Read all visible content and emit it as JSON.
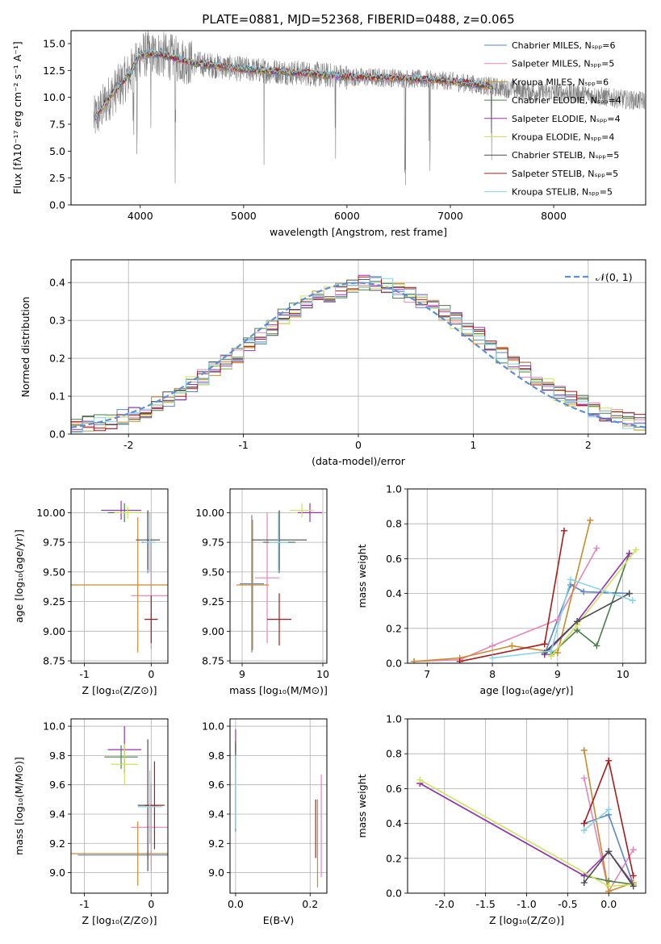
{
  "figure_title": "PLATE=0881, MJD=52368, FIBERID=0488, z=0.065",
  "colors": {
    "spectrum": "#808080",
    "series": [
      "#5b86c4",
      "#e586bd",
      "#c98a2a",
      "#4a7f4a",
      "#9a2fb5",
      "#cde35c",
      "#4d4d4d",
      "#a81b1b",
      "#86d2e6"
    ],
    "normal_curve": "#5b8fd6",
    "grid": "#b0b0b0"
  },
  "chart_data": [
    {
      "type": "line",
      "title": "PLATE=0881, MJD=52368, FIBERID=0488, z=0.065",
      "xlabel": "wavelength [Angstrom, rest frame]",
      "ylabel": "Flux [fλ10⁻¹⁷ erg cm⁻² s⁻¹ A⁻¹]",
      "xlim": [
        3330,
        8890
      ],
      "ylim": [
        0,
        16.2
      ],
      "xticks": [
        4000,
        5000,
        6000,
        7000,
        8000
      ],
      "yticks": [
        0.0,
        2.5,
        5.0,
        7.5,
        10.0,
        12.5,
        15.0
      ],
      "grid": false,
      "legend_position": "top-right",
      "legend": [
        "Chabrier MILES, Nₛₚₚ=6",
        "Salpeter MILES, Nₛₚₚ=5",
        "Kroupa MILES, Nₛₚₚ=6",
        "Chabrier ELODIE, Nₛₚₚ=4",
        "Salpeter ELODIE, Nₛₚₚ=4",
        "Kroupa ELODIE, Nₛₚₚ=4",
        "Chabrier STELIB, Nₛₚₚ=5",
        "Salpeter STELIB, Nₛₚₚ=5",
        "Kroupa STELIB, Nₛₚₚ=5"
      ],
      "continuum_x": [
        3560,
        3700,
        3900,
        4000,
        4200,
        4500,
        5000,
        5500,
        6000,
        6500,
        7000,
        7400,
        7800,
        8200,
        8600,
        8800
      ],
      "continuum_y": [
        8.0,
        10.0,
        12.2,
        14.0,
        14.0,
        13.2,
        12.6,
        12.3,
        11.9,
        11.8,
        11.5,
        11.0,
        10.5,
        10.4,
        9.9,
        9.7
      ],
      "spectrum_range": [
        3550,
        8880
      ],
      "model_range": [
        3560,
        7420
      ],
      "absorption_lines": [
        3934,
        3969,
        4102,
        4340,
        5200,
        5890,
        6563,
        6800,
        7400
      ]
    },
    {
      "type": "line",
      "xlabel": "(data-model)/error",
      "ylabel": "Normed distribution",
      "xlim": [
        -2.5,
        2.5
      ],
      "ylim": [
        0,
        0.46
      ],
      "xticks": [
        -2,
        -1,
        0,
        1,
        2
      ],
      "yticks": [
        0.0,
        0.1,
        0.2,
        0.3,
        0.4
      ],
      "grid": true,
      "legend_position": "top-right",
      "legend": [
        "𝒩(0, 1)"
      ],
      "bins": [
        -2.5,
        -2.4,
        -2.3,
        -2.2,
        -2.1,
        -2.0,
        -1.9,
        -1.8,
        -1.7,
        -1.6,
        -1.5,
        -1.4,
        -1.3,
        -1.2,
        -1.1,
        -1.0,
        -0.9,
        -0.8,
        -0.7,
        -0.6,
        -0.5,
        -0.4,
        -0.3,
        -0.2,
        -0.1,
        0.0,
        0.1,
        0.2,
        0.3,
        0.4,
        0.5,
        0.6,
        0.7,
        0.8,
        0.9,
        1.0,
        1.1,
        1.2,
        1.3,
        1.4,
        1.5,
        1.6,
        1.7,
        1.8,
        1.9,
        2.0,
        2.1,
        2.2,
        2.3,
        2.4
      ],
      "histogram_base": [
        0.02,
        0.025,
        0.03,
        0.035,
        0.045,
        0.055,
        0.065,
        0.08,
        0.095,
        0.11,
        0.13,
        0.15,
        0.17,
        0.19,
        0.21,
        0.24,
        0.26,
        0.28,
        0.31,
        0.33,
        0.35,
        0.36,
        0.37,
        0.38,
        0.39,
        0.4,
        0.395,
        0.39,
        0.38,
        0.37,
        0.35,
        0.34,
        0.32,
        0.3,
        0.28,
        0.26,
        0.24,
        0.21,
        0.19,
        0.17,
        0.15,
        0.13,
        0.11,
        0.095,
        0.08,
        0.065,
        0.055,
        0.045,
        0.035,
        0.03
      ],
      "normal_mean": 0,
      "normal_sigma": 1
    },
    {
      "type": "scatter",
      "xlabel": "Z [log₁₀(Z/Z⊙)]",
      "ylabel": "age  [log₁₀(age/yr)]",
      "xlim": [
        -1.2,
        0.25
      ],
      "ylim": [
        8.73,
        10.2
      ],
      "xticks": [
        -1,
        0
      ],
      "yticks": [
        8.75,
        9.0,
        9.25,
        9.5,
        9.75,
        10.0
      ],
      "points": [
        {
          "x": -0.05,
          "y": 9.75,
          "xerr": 0.09,
          "yerr": 0.26
        },
        {
          "x": 0.0,
          "y": 9.3,
          "xerr": 0.3,
          "yerr": 0.45
        },
        {
          "x": -0.2,
          "y": 9.39,
          "xerr": 1.1,
          "yerr": 0.57
        },
        {
          "x": -0.4,
          "y": 10.0,
          "xerr": 0.25,
          "yerr": 0.08
        },
        {
          "x": -0.45,
          "y": 10.02,
          "xerr": 0.3,
          "yerr": 0.08
        },
        {
          "x": -0.35,
          "y": 10.0,
          "xerr": 0.2,
          "yerr": 0.05
        },
        {
          "x": -0.05,
          "y": 9.77,
          "xerr": 0.18,
          "yerr": 0.25
        },
        {
          "x": 0.0,
          "y": 9.1,
          "xerr": 0.1,
          "yerr": 0.2
        },
        {
          "x": -0.02,
          "y": 9.75,
          "xerr": 0.09,
          "yerr": 0.25
        }
      ]
    },
    {
      "type": "scatter",
      "xlabel": "mass [log₁₀(M/M⊙)]",
      "ylabel": "",
      "xlim": [
        8.85,
        10.05
      ],
      "ylim": [
        8.73,
        10.2
      ],
      "xticks": [
        9,
        10
      ],
      "yticks": [
        8.75,
        9.0,
        9.25,
        9.5,
        9.75,
        10.0
      ],
      "points": [
        {
          "x": 9.12,
          "y": 9.4,
          "xerr": 0.15,
          "yerr": 0.58
        },
        {
          "x": 9.31,
          "y": 9.45,
          "xerr": 0.15,
          "yerr": 0.55
        },
        {
          "x": 9.13,
          "y": 9.39,
          "xerr": 0.2,
          "yerr": 0.55
        },
        {
          "x": 9.46,
          "y": 9.75,
          "xerr": 0.2,
          "yerr": 0.26
        },
        {
          "x": 9.84,
          "y": 10.0,
          "xerr": 0.15,
          "yerr": 0.08
        },
        {
          "x": 9.74,
          "y": 10.02,
          "xerr": 0.15,
          "yerr": 0.06
        },
        {
          "x": 9.46,
          "y": 9.77,
          "xerr": 0.34,
          "yerr": 0.25
        },
        {
          "x": 9.46,
          "y": 9.1,
          "xerr": 0.15,
          "yerr": 0.22
        },
        {
          "x": 9.45,
          "y": 9.75,
          "xerr": 0.12,
          "yerr": 0.25
        }
      ]
    },
    {
      "type": "line",
      "xlabel": "age  [log₁₀(age/yr)]",
      "ylabel": "mass weight",
      "xlim": [
        6.7,
        10.35
      ],
      "ylim": [
        0,
        1.0
      ],
      "xticks": [
        7,
        8,
        9,
        10
      ],
      "yticks": [
        0.0,
        0.2,
        0.4,
        0.6,
        0.8,
        1.0
      ],
      "grid": true,
      "series": [
        {
          "x": [
            8.8,
            9.2,
            9.4,
            10.1
          ],
          "y": [
            0.05,
            0.45,
            0.41,
            0.4
          ]
        },
        {
          "x": [
            6.8,
            7.5,
            8.0,
            9.0,
            9.6
          ],
          "y": [
            0.01,
            0.02,
            0.1,
            0.25,
            0.66
          ]
        },
        {
          "x": [
            6.8,
            7.5,
            8.3,
            9.0,
            9.5
          ],
          "y": [
            0.01,
            0.03,
            0.1,
            0.06,
            0.82
          ]
        },
        {
          "x": [
            8.9,
            9.3,
            9.6,
            10.1
          ],
          "y": [
            0.05,
            0.19,
            0.1,
            0.63
          ]
        },
        {
          "x": [
            8.8,
            9.3,
            10.1
          ],
          "y": [
            0.05,
            0.24,
            0.63
          ]
        },
        {
          "x": [
            8.9,
            9.3,
            10.2
          ],
          "y": [
            0.04,
            0.22,
            0.65
          ]
        },
        {
          "x": [
            8.8,
            9.3,
            10.1
          ],
          "y": [
            0.06,
            0.24,
            0.4
          ]
        },
        {
          "x": [
            7.5,
            8.8,
            9.1
          ],
          "y": [
            0.01,
            0.11,
            0.76
          ]
        },
        {
          "x": [
            8.0,
            8.9,
            9.2,
            10.15
          ],
          "y": [
            0.03,
            0.07,
            0.48,
            0.36
          ]
        }
      ]
    },
    {
      "type": "scatter",
      "xlabel": "Z [log₁₀(Z/Z⊙)]",
      "ylabel": "mass [log₁₀(M/M⊙)]",
      "xlim": [
        -1.2,
        0.25
      ],
      "ylim": [
        8.86,
        10.05
      ],
      "xticks": [
        -1,
        0
      ],
      "yticks": [
        9.0,
        9.2,
        9.4,
        9.6,
        9.8,
        10.0
      ],
      "points": [
        {
          "x": -0.05,
          "y": 9.12,
          "xerr": 1.05,
          "yerr": 0.03
        },
        {
          "x": 0.0,
          "y": 9.31,
          "xerr": 0.3,
          "yerr": 0.3
        },
        {
          "x": -0.2,
          "y": 9.13,
          "xerr": 1.1,
          "yerr": 0.22
        },
        {
          "x": -0.45,
          "y": 9.79,
          "xerr": 0.25,
          "yerr": 0.08
        },
        {
          "x": -0.4,
          "y": 9.84,
          "xerr": 0.25,
          "yerr": 0.16
        },
        {
          "x": -0.4,
          "y": 9.74,
          "xerr": 0.2,
          "yerr": 0.14
        },
        {
          "x": -0.05,
          "y": 9.46,
          "xerr": 0.15,
          "yerr": 0.45
        },
        {
          "x": 0.05,
          "y": 9.46,
          "xerr": 0.15,
          "yerr": 0.3
        },
        {
          "x": -0.02,
          "y": 9.45,
          "xerr": 0.18,
          "yerr": 0.25
        }
      ]
    },
    {
      "type": "scatter",
      "xlabel": "E(B-V)",
      "ylabel": "",
      "xlim": [
        -0.015,
        0.245
      ],
      "ylim": [
        8.86,
        10.05
      ],
      "xticks": [
        0.0,
        0.2
      ],
      "yticks": [
        9.0,
        9.2,
        9.4,
        9.6,
        9.8,
        10.0
      ],
      "points": [
        {
          "x": 0.0,
          "y": 9.53,
          "xerr": 0,
          "yerr": 0.25
        },
        {
          "x": 0.23,
          "y": 9.32,
          "xerr": 0,
          "yerr": 0.35
        },
        {
          "x": 0.22,
          "y": 9.2,
          "xerr": 0,
          "yerr": 0.3
        },
        {
          "x": 0.0,
          "y": 9.8,
          "xerr": 0,
          "yerr": 0.08
        },
        {
          "x": 0.0,
          "y": 9.9,
          "xerr": 0,
          "yerr": 0.08
        },
        {
          "x": 0.0,
          "y": 9.75,
          "xerr": 0,
          "yerr": 0.1
        },
        {
          "x": 0.0,
          "y": 9.6,
          "xerr": 0,
          "yerr": 0.3
        },
        {
          "x": 0.215,
          "y": 9.3,
          "xerr": 0,
          "yerr": 0.2
        },
        {
          "x": 0.0,
          "y": 9.55,
          "xerr": 0,
          "yerr": 0.25
        }
      ]
    },
    {
      "type": "line",
      "xlabel": "Z [log₁₀(Z/Z⊙)]",
      "ylabel": "mass weight",
      "xlim": [
        -2.45,
        0.45
      ],
      "ylim": [
        0,
        1.0
      ],
      "xticks": [
        -2.0,
        -1.5,
        -1.0,
        -0.5,
        0.0
      ],
      "yticks": [
        0.0,
        0.2,
        0.4,
        0.6,
        0.8,
        1.0
      ],
      "grid": true,
      "series": [
        {
          "x": [
            -0.3,
            0.0,
            0.3
          ],
          "y": [
            0.4,
            0.45,
            0.05
          ]
        },
        {
          "x": [
            -0.3,
            0.0,
            0.3
          ],
          "y": [
            0.66,
            0.01,
            0.25
          ]
        },
        {
          "x": [
            -0.3,
            0.0,
            0.3
          ],
          "y": [
            0.82,
            0.01,
            0.06
          ]
        },
        {
          "x": [
            -2.3,
            -0.3,
            0.0,
            0.3
          ],
          "y": [
            0.63,
            0.1,
            0.07,
            0.05
          ]
        },
        {
          "x": [
            -2.3,
            -0.3,
            0.0,
            0.3
          ],
          "y": [
            0.63,
            0.1,
            0.24,
            0.05
          ]
        },
        {
          "x": [
            -2.3,
            0.0,
            0.3
          ],
          "y": [
            0.65,
            0.04,
            0.05
          ]
        },
        {
          "x": [
            -0.3,
            0.0,
            0.3
          ],
          "y": [
            0.06,
            0.24,
            0.04
          ]
        },
        {
          "x": [
            -0.3,
            0.0,
            0.3
          ],
          "y": [
            0.4,
            0.76,
            0.1
          ]
        },
        {
          "x": [
            -0.3,
            0.0
          ],
          "y": [
            0.36,
            0.48
          ]
        }
      ]
    }
  ]
}
